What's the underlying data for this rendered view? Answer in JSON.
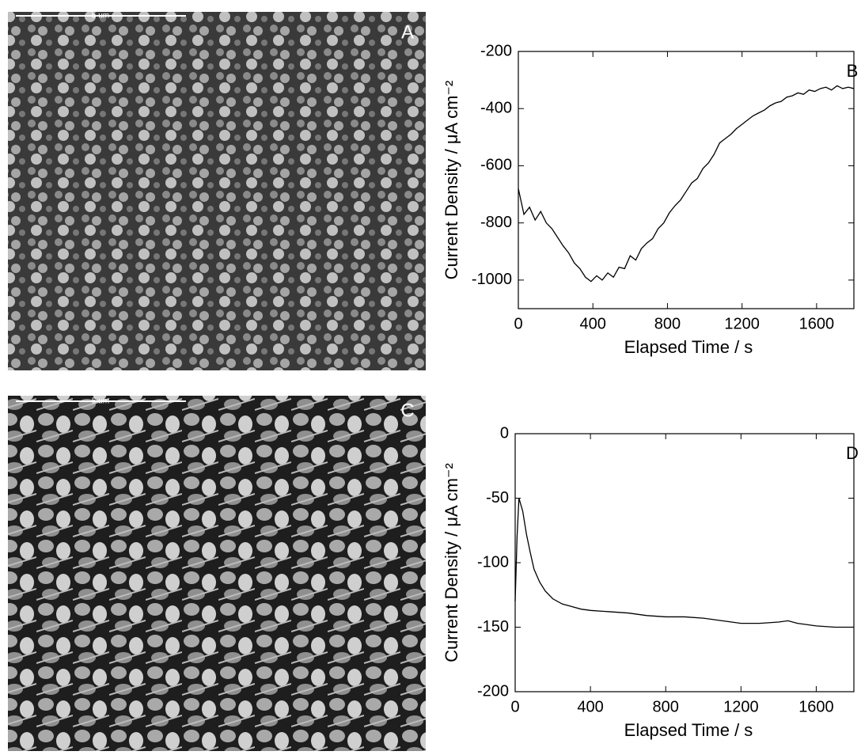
{
  "images": [
    {
      "label": "A",
      "scale_bar": "5 um"
    },
    {
      "label": "C",
      "scale_bar": "5 um"
    }
  ],
  "chart_data": [
    {
      "type": "line",
      "panel_label": "B",
      "xlabel": "Elapsed Time  /  s",
      "ylabel": "Current Density  /  μA cm⁻²",
      "color": "#000000",
      "xlim": [
        0,
        1800
      ],
      "xticks": [
        0,
        400,
        800,
        1200,
        1600
      ],
      "ylim": [
        -1100,
        -200
      ],
      "yticks": [
        -200,
        -400,
        -600,
        -800,
        -1000
      ],
      "x": [
        0,
        30,
        60,
        90,
        120,
        150,
        180,
        210,
        240,
        270,
        300,
        330,
        360,
        390,
        420,
        450,
        480,
        510,
        540,
        570,
        600,
        630,
        660,
        690,
        720,
        750,
        780,
        810,
        840,
        870,
        900,
        930,
        960,
        990,
        1020,
        1050,
        1080,
        1110,
        1140,
        1170,
        1200,
        1230,
        1260,
        1290,
        1320,
        1350,
        1380,
        1410,
        1440,
        1470,
        1500,
        1530,
        1560,
        1590,
        1620,
        1650,
        1680,
        1710,
        1740,
        1770,
        1800
      ],
      "values": [
        -680,
        -770,
        -745,
        -790,
        -760,
        -800,
        -820,
        -850,
        -880,
        -905,
        -940,
        -960,
        -990,
        -1005,
        -985,
        -1000,
        -975,
        -990,
        -955,
        -960,
        -915,
        -930,
        -890,
        -870,
        -855,
        -820,
        -800,
        -765,
        -740,
        -720,
        -690,
        -660,
        -645,
        -610,
        -590,
        -560,
        -520,
        -505,
        -490,
        -470,
        -455,
        -440,
        -425,
        -415,
        -405,
        -390,
        -380,
        -375,
        -360,
        -355,
        -345,
        -350,
        -335,
        -340,
        -330,
        -325,
        -335,
        -320,
        -330,
        -325,
        -330
      ]
    },
    {
      "type": "line",
      "panel_label": "D",
      "xlabel": "Elapsed Time  /  s",
      "ylabel": "Current Density  /  μA cm⁻²",
      "color": "#000000",
      "xlim": [
        0,
        1800
      ],
      "xticks": [
        0,
        400,
        800,
        1200,
        1600
      ],
      "ylim": [
        -200,
        0
      ],
      "yticks": [
        0,
        -50,
        -100,
        -150,
        -200
      ],
      "x": [
        0,
        10,
        20,
        40,
        60,
        80,
        100,
        130,
        160,
        200,
        250,
        300,
        350,
        400,
        500,
        600,
        700,
        800,
        900,
        1000,
        1100,
        1200,
        1300,
        1400,
        1450,
        1500,
        1600,
        1700,
        1800
      ],
      "values": [
        -130,
        -80,
        -50,
        -60,
        -78,
        -92,
        -105,
        -115,
        -122,
        -128,
        -132,
        -134,
        -136,
        -137,
        -138,
        -139,
        -141,
        -142,
        -142,
        -143,
        -145,
        -147,
        -147,
        -146,
        -145,
        -147,
        -149,
        -150,
        -150
      ]
    }
  ]
}
